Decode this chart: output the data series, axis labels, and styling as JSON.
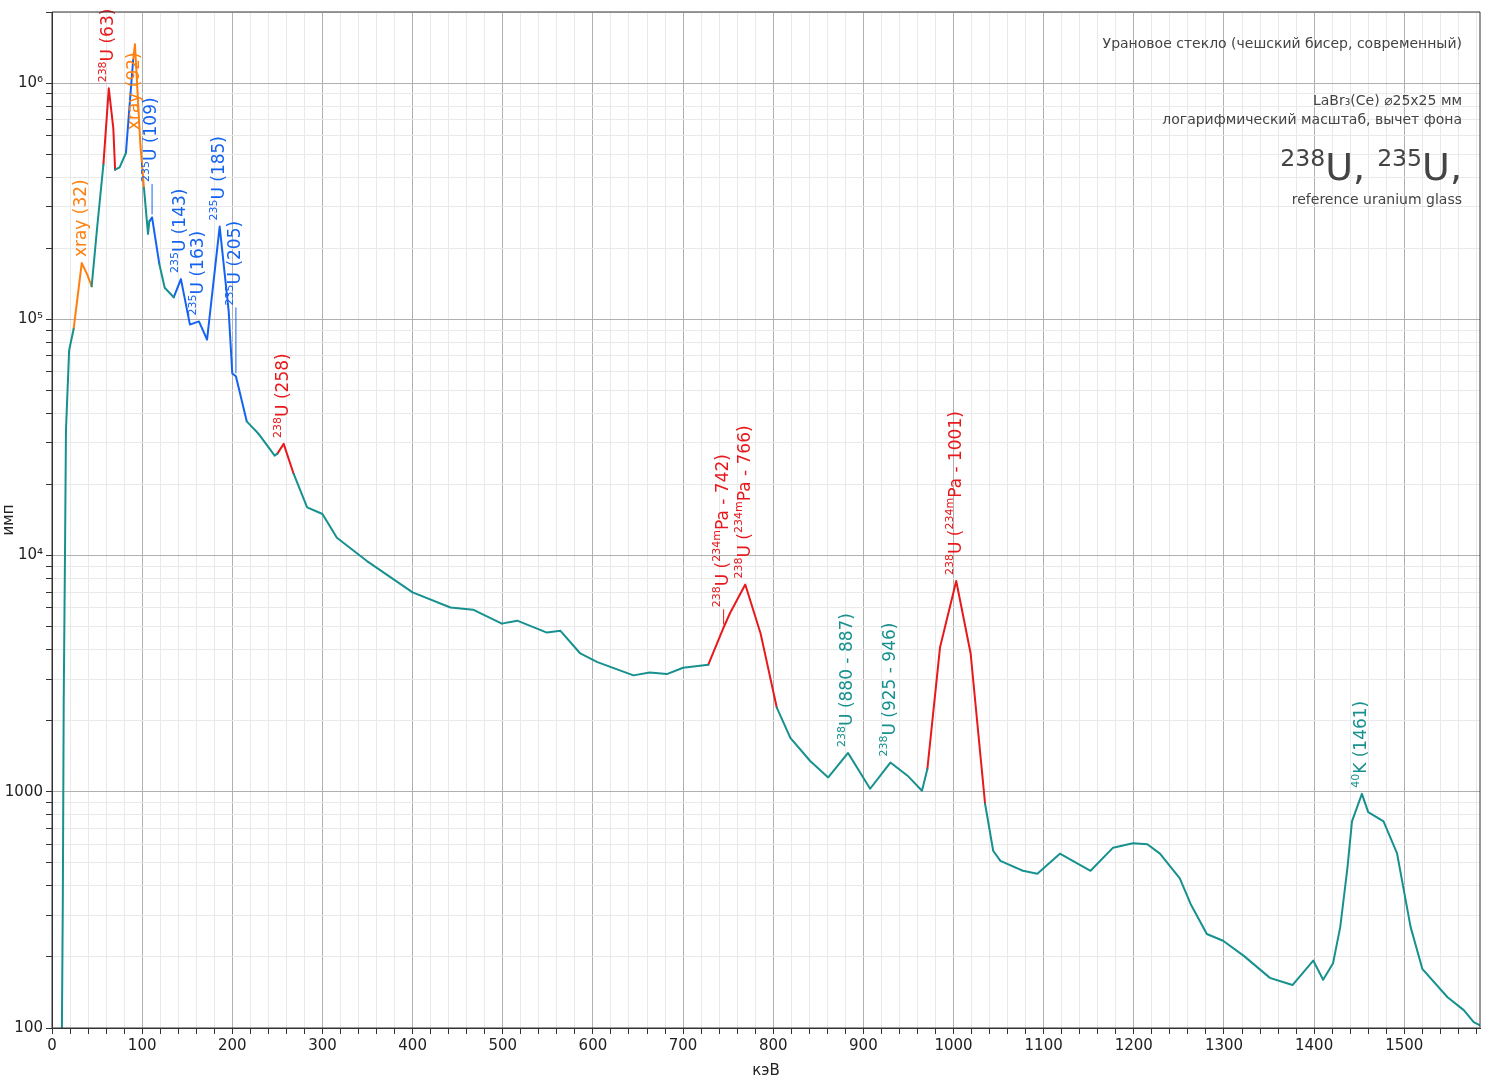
{
  "chart_data": {
    "type": "line",
    "title": "Урановое стекло (чешский бисер, современный)",
    "subtitle": "LaBr₃(Ce) ⌀25x25 мм",
    "xlabel": "кэВ",
    "ylabel": "имп",
    "log": "y",
    "grid": true,
    "xlim": [
      0,
      1584
    ],
    "ylim": [
      100,
      2000000
    ],
    "xticks": [
      0,
      {
        "value": 20,
        "label": null
      },
      {
        "value": 40,
        "label": null
      },
      {
        "value": 60,
        "label": null
      },
      {
        "value": 80,
        "label": null
      },
      100,
      {
        "value": 120,
        "label": null
      },
      {
        "value": 140,
        "label": null
      },
      {
        "value": 160,
        "label": null
      },
      {
        "value": 180,
        "label": null
      },
      200,
      {
        "value": 220,
        "label": null
      },
      {
        "value": 240,
        "label": null
      },
      {
        "value": 260,
        "label": null
      },
      {
        "value": 280,
        "label": null
      },
      300,
      {
        "value": 320,
        "label": null
      },
      {
        "value": 340,
        "label": null
      },
      {
        "value": 360,
        "label": null
      },
      {
        "value": 380,
        "label": null
      },
      400,
      {
        "value": 420,
        "label": null
      },
      {
        "value": 440,
        "label": null
      },
      {
        "value": 460,
        "label": null
      },
      {
        "value": 480,
        "label": null
      },
      500,
      {
        "value": 520,
        "label": null
      },
      {
        "value": 540,
        "label": null
      },
      {
        "value": 560,
        "label": null
      },
      {
        "value": 580,
        "label": null
      },
      600,
      {
        "value": 620,
        "label": null
      },
      {
        "value": 640,
        "label": null
      },
      {
        "value": 660,
        "label": null
      },
      {
        "value": 680,
        "label": null
      },
      700,
      {
        "value": 720,
        "label": null
      },
      {
        "value": 740,
        "label": null
      },
      {
        "value": 760,
        "label": null
      },
      {
        "value": 780,
        "label": null
      },
      800,
      {
        "value": 820,
        "label": null
      },
      {
        "value": 840,
        "label": null
      },
      {
        "value": 860,
        "label": null
      },
      {
        "value": 880,
        "label": null
      },
      900,
      {
        "value": 920,
        "label": null
      },
      {
        "value": 940,
        "label": null
      },
      {
        "value": 960,
        "label": null
      },
      {
        "value": 980,
        "label": null
      },
      1000,
      {
        "value": 1020,
        "label": null
      },
      {
        "value": 1040,
        "label": null
      },
      {
        "value": 1060,
        "label": null
      },
      {
        "value": 1080,
        "label": null
      },
      1100,
      {
        "value": 1120,
        "label": null
      },
      {
        "value": 1140,
        "label": null
      },
      {
        "value": 1160,
        "label": null
      },
      {
        "value": 1180,
        "label": null
      },
      1200,
      {
        "value": 1220,
        "label": null
      },
      {
        "value": 1240,
        "label": null
      },
      {
        "value": 1260,
        "label": null
      },
      {
        "value": 1280,
        "label": null
      },
      1300,
      {
        "value": 1320,
        "label": null
      },
      {
        "value": 1340,
        "label": null
      },
      {
        "value": 1360,
        "label": null
      },
      {
        "value": 1380,
        "label": null
      },
      1400,
      {
        "value": 1420,
        "label": null
      },
      {
        "value": 1440,
        "label": null
      },
      {
        "value": 1460,
        "label": null
      },
      {
        "value": 1480,
        "label": null
      },
      1500,
      {
        "value": 1520,
        "label": null
      },
      {
        "value": 1540,
        "label": null
      },
      {
        "value": 1560,
        "label": null
      },
      {
        "value": 1580,
        "label": null
      }
    ],
    "yticks": [
      100,
      {
        "value": 200,
        "label": null
      },
      {
        "value": 300,
        "label": null
      },
      {
        "value": 400,
        "label": null
      },
      {
        "value": 500,
        "label": null
      },
      {
        "value": 600,
        "label": null
      },
      {
        "value": 700,
        "label": null
      },
      {
        "value": 800,
        "label": null
      },
      {
        "value": 900,
        "label": null
      },
      1000,
      {
        "value": 2000,
        "label": null
      },
      {
        "value": 3000,
        "label": null
      },
      {
        "value": 4000,
        "label": null
      },
      {
        "value": 5000,
        "label": null
      },
      {
        "value": 6000,
        "label": null
      },
      {
        "value": 7000,
        "label": null
      },
      {
        "value": 8000,
        "label": null
      },
      {
        "value": 9000,
        "label": null
      },
      {
        "value": 10000,
        "label": "10⁴"
      },
      {
        "value": 20000,
        "label": null
      },
      {
        "value": 30000,
        "label": null
      },
      {
        "value": 40000,
        "label": null
      },
      {
        "value": 50000,
        "label": null
      },
      {
        "value": 60000,
        "label": null
      },
      {
        "value": 70000,
        "label": null
      },
      {
        "value": 80000,
        "label": null
      },
      {
        "value": 90000,
        "label": null
      },
      {
        "value": 100000,
        "label": "10⁵"
      },
      {
        "value": 200000,
        "label": null
      },
      {
        "value": 300000,
        "label": null
      },
      {
        "value": 400000,
        "label": null
      },
      {
        "value": 500000,
        "label": null
      },
      {
        "value": 600000,
        "label": null
      },
      {
        "value": 700000,
        "label": null
      },
      {
        "value": 800000,
        "label": null
      },
      {
        "value": 900000,
        "label": null
      },
      {
        "value": 1000000,
        "label": "10⁶"
      },
      {
        "value": 2000000,
        "label": null
      }
    ],
    "series": [
      {
        "color": "#17918f",
        "x": [
          11,
          12,
          13,
          14.4,
          15.5,
          19,
          24,
          34,
          44,
          50,
          57,
          63,
          70,
          75,
          82,
          95,
          102,
          106.5,
          108,
          113,
          119,
          125,
          135,
          175,
          216,
          229,
          247,
          250,
          259,
          268,
          283,
          300,
          316,
          349,
          400,
          442,
          467,
          499,
          516,
          549,
          564,
          586,
          605,
          645,
          663,
          682,
          700,
          728,
          770,
          804,
          819,
          841,
          861,
          883,
          907.5,
          930,
          949,
          965,
          971,
          1000,
          1035,
          1044,
          1052,
          1077,
          1093,
          1118,
          1152,
          1177,
          1199,
          1215,
          1229,
          1251,
          1263,
          1281,
          1299,
          1322,
          1351,
          1376,
          1399,
          1410,
          1421,
          1429,
          1437,
          1442,
          1453,
          1460,
          1477,
          1492,
          1507,
          1520,
          1548,
          1566,
          1577,
          1583
        ],
        "values": [
          100,
          350,
          2440,
          10000,
          34000,
          74000,
          91000,
          null,
          138000,
          243000,
          452000,
          null,
          430000,
          440000,
          506000,
          null,
          360000,
          230000,
          260000,
          null,
          172000,
          136000,
          124000,
          null,
          37000,
          32800,
          26500,
          27000,
          null,
          22200,
          16000,
          15000,
          11900,
          9500,
          6980,
          6030,
          5900,
          5150,
          5300,
          4720,
          4800,
          3850,
          3540,
          3110,
          3200,
          3150,
          3350,
          3450,
          null,
          2270,
          1690,
          1350,
          1150,
          1460,
          1030,
          1330,
          1170,
          1010,
          1250,
          null,
          890,
          563,
          510,
          463,
          450,
          547,
          463,
          580,
          606,
          600,
          547,
          430,
          335,
          250,
          234,
          202,
          163,
          152,
          193,
          160,
          188,
          268,
          478,
          750,
          980,
          820,
          750,
          548,
          268,
          178,
          135,
          119,
          106,
          103
        ]
      },
      {
        "color": "#1463f0",
        "x": [
          82,
          86,
          90,
          100,
          108,
          111,
          119,
          127,
          135,
          143,
          153,
          163,
          172,
          186,
          196,
          200,
          204,
          216
        ],
        "values": [
          506000,
          800000,
          1250000,
          null,
          260000,
          270000,
          172000,
          null,
          124000,
          148000,
          95000,
          98000,
          82000,
          247000,
          108000,
          59000,
          57400,
          37000
        ]
      },
      {
        "color": "#e8191c",
        "x": [
          57,
          63,
          68,
          70,
          160,
          250,
          257,
          268,
          500,
          728,
          745,
          752,
          769,
          786,
          804,
          900,
          971,
          985,
          1003,
          1019,
          1035
        ],
        "values": [
          452000,
          950000,
          645000,
          430000,
          null,
          27000,
          29700,
          22200,
          null,
          3450,
          4960,
          5700,
          7540,
          4680,
          2270,
          null,
          1250,
          4080,
          7800,
          3850,
          890
        ]
      },
      {
        "color": "#ff7f0e",
        "x": [
          24,
          33,
          39,
          44,
          60,
          90,
          92,
          95,
          98,
          102
        ],
        "values": [
          91000,
          173000,
          155000,
          138000,
          null,
          1250000,
          1460000,
          900000,
          550000,
          360000
        ]
      }
    ],
    "annotations": [
      "логарифмический масштаб, вычет фона",
      "$^{238}$U, $^{235}$U,",
      "reference uranium glass",
      {
        "text": "xray (32)",
        "x": 33,
        "y": 173000
      },
      {
        "text": "$^{238}$U (63)",
        "x": 63,
        "y": 950000
      },
      {
        "text": "xray (92)",
        "x": 92,
        "y": 1460000
      },
      {
        "text": "$^{235}$U (109)",
        "x": 111,
        "y": 270000
      },
      {
        "text": "$^{235}$U (143)",
        "x": 143,
        "y": 148000
      },
      {
        "text": "$^{235}$U (163)",
        "x": 163,
        "y": 98000
      },
      {
        "text": "$^{235}$U (185)",
        "x": 186,
        "y": 247000
      },
      {
        "text": "$^{235}$U (205)",
        "x": 204,
        "y": 57400
      },
      {
        "text": "$^{238}$U (258)",
        "x": 257,
        "y": 29700
      },
      {
        "text": "$^{238}$U ($^{234m}$Pa - 742)",
        "x": 745,
        "y": 4960
      },
      {
        "text": "$^{238}$U ($^{234m}$Pa - 766)",
        "x": 769,
        "y": 7540
      },
      {
        "text": "$^{238}$U ($^{234m}$Pa - 1001)",
        "x": 1003,
        "y": 7800
      },
      {
        "text": "$^{238}$U (880 - 887)",
        "x": 883,
        "y": 1460
      },
      {
        "text": "$^{238}$U (925 - 946)",
        "x": 930,
        "y": 1330
      },
      {
        "text": "$^{40}$K (1461)",
        "x": 1453,
        "y": 980
      }
    ]
  }
}
